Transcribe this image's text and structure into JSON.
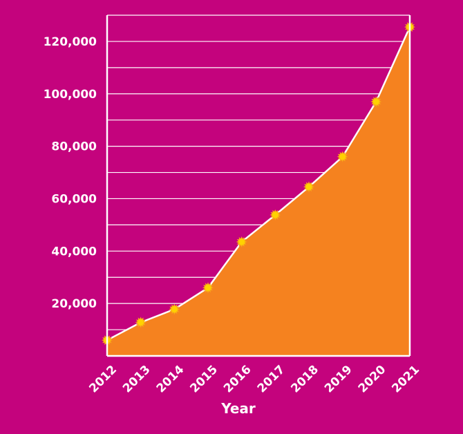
{
  "colors": {
    "background": "#c4037d",
    "area_fill": "#f5821f",
    "line": "#ffffff",
    "grid": "#ffffff",
    "marker": "#ffd200",
    "marker_edge": "#f7a21b"
  },
  "chart_data": {
    "type": "area",
    "title": "",
    "xlabel": "Year",
    "ylabel": "",
    "x": [
      "2012",
      "2013",
      "2014",
      "2015",
      "2016",
      "2017",
      "2018",
      "2019",
      "2020",
      "2021"
    ],
    "series": [
      {
        "values": [
          6000,
          12800,
          17800,
          26000,
          43500,
          53800,
          64500,
          76000,
          97000,
          125500
        ]
      }
    ],
    "ylim": [
      0,
      130000
    ],
    "y_ticks": [
      20000,
      40000,
      60000,
      80000,
      100000,
      120000
    ],
    "y_tick_labels": [
      "20,000",
      "40,000",
      "60,000",
      "80,000",
      "100,000",
      "120,000"
    ],
    "grid_step": 10000,
    "grid": true,
    "legend": "none"
  }
}
